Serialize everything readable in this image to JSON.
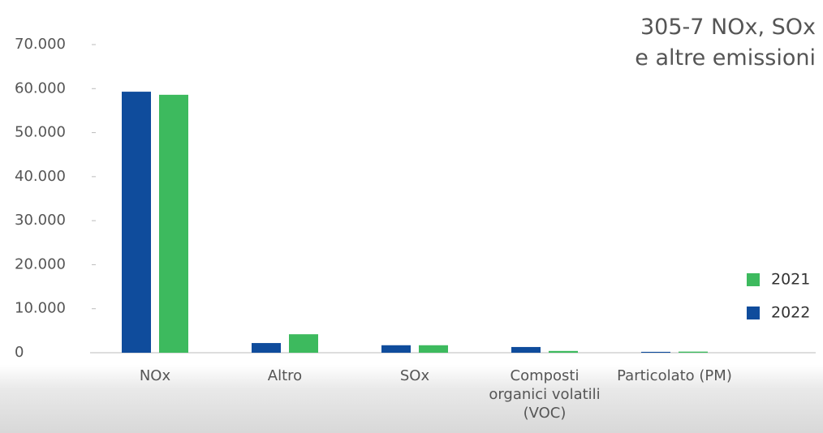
{
  "chart_data": {
    "type": "bar",
    "title": [
      "305-7 NOx, SOx",
      "e altre emissioni"
    ],
    "categories": [
      "NOx",
      "Altro",
      "SOx",
      "Composti organici volatili (VOC)",
      "Particolato (PM)"
    ],
    "series": [
      {
        "name": "2022",
        "color": "#0f4c9c",
        "values": [
          59300,
          2200,
          1700,
          1300,
          200
        ]
      },
      {
        "name": "2021",
        "color": "#3dba5e",
        "values": [
          58600,
          4200,
          1700,
          400,
          250
        ]
      }
    ],
    "legend_order": [
      1,
      0
    ],
    "ylim": [
      0,
      70000
    ],
    "yticks": [
      0,
      {
        "value": 10000,
        "label": "10.000"
      },
      {
        "value": 20000,
        "label": "20.000"
      },
      {
        "value": 30000,
        "label": "30.000"
      },
      {
        "value": 40000,
        "label": "40.000"
      },
      {
        "value": 50000,
        "label": "50.000"
      },
      {
        "value": 60000,
        "label": "60.000"
      },
      {
        "value": 70000,
        "label": "70.000"
      }
    ],
    "grid": false,
    "legend": "right"
  }
}
